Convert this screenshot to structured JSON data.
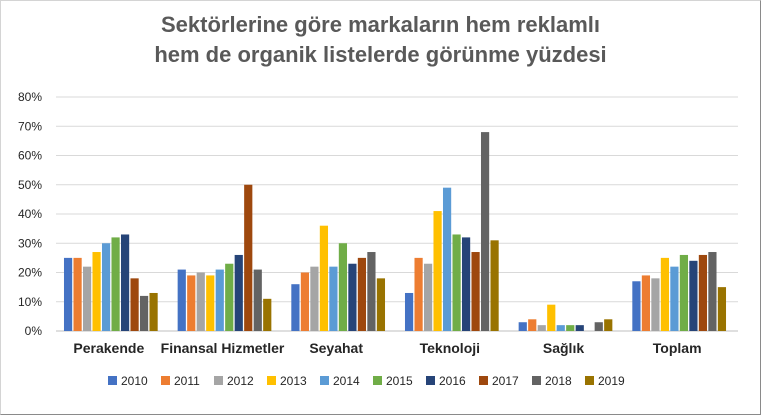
{
  "chart_data": {
    "type": "bar",
    "title_lines": [
      "Sektörlerine göre markaların hem reklamlı",
      "hem de organik listelerde görünme yüzdesi"
    ],
    "categories": [
      "Perakende",
      "Finansal Hizmetler",
      "Seyahat",
      "Teknoloji",
      "Sağlık",
      "Toplam"
    ],
    "ylim": [
      0,
      80
    ],
    "yticks": [
      "0%",
      "10%",
      "20%",
      "30%",
      "40%",
      "50%",
      "60%",
      "70%",
      "80%"
    ],
    "ytick_values": [
      0,
      10,
      20,
      30,
      40,
      50,
      60,
      70,
      80
    ],
    "grid": true,
    "legend_position": "bottom",
    "series": [
      {
        "name": "2010",
        "color": "#4472c4",
        "values": [
          25,
          21,
          16,
          13,
          3,
          17
        ]
      },
      {
        "name": "2011",
        "color": "#ed7d31",
        "values": [
          25,
          19,
          20,
          25,
          4,
          19
        ]
      },
      {
        "name": "2012",
        "color": "#a5a5a5",
        "values": [
          22,
          20,
          22,
          23,
          2,
          18
        ]
      },
      {
        "name": "2013",
        "color": "#ffc000",
        "values": [
          27,
          19,
          36,
          41,
          9,
          25
        ]
      },
      {
        "name": "2014",
        "color": "#5b9bd5",
        "values": [
          30,
          21,
          22,
          49,
          2,
          22
        ]
      },
      {
        "name": "2015",
        "color": "#70ad47",
        "values": [
          32,
          23,
          30,
          33,
          2,
          26
        ]
      },
      {
        "name": "2016",
        "color": "#264478",
        "values": [
          33,
          26,
          23,
          32,
          2,
          24
        ]
      },
      {
        "name": "2017",
        "color": "#9e480e",
        "values": [
          18,
          50,
          25,
          27,
          null,
          26
        ]
      },
      {
        "name": "2018",
        "color": "#636363",
        "values": [
          12,
          21,
          27,
          68,
          3,
          27
        ]
      },
      {
        "name": "2019",
        "color": "#997300",
        "values": [
          13,
          11,
          18,
          31,
          4,
          15
        ]
      }
    ]
  }
}
